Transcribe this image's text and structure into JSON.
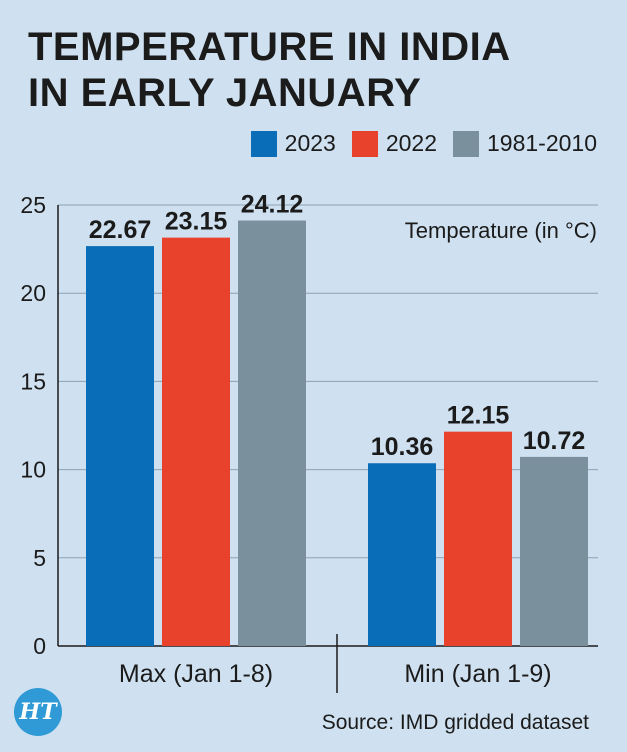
{
  "title_lines": [
    "TEMPERATURE IN INDIA",
    "IN EARLY JANUARY"
  ],
  "legend": [
    {
      "label": "2023",
      "color": "#0a6db7"
    },
    {
      "label": "2022",
      "color": "#e8412c"
    },
    {
      "label": "1981-2010",
      "color": "#7b909d"
    }
  ],
  "source": "Source: IMD gridded dataset",
  "logo_text": "HT",
  "chart_data": {
    "type": "bar",
    "title": "TEMPERATURE IN INDIA IN EARLY JANUARY",
    "ylabel": "Temperature (in °C)",
    "xlabel": "",
    "categories": [
      "Max (Jan 1-8)",
      "Min (Jan 1-9)"
    ],
    "series": [
      {
        "name": "2023",
        "values": [
          22.67,
          10.36
        ],
        "labels": [
          "22.67",
          "10.36"
        ]
      },
      {
        "name": "2022",
        "values": [
          23.15,
          12.15
        ],
        "labels": [
          "23.15",
          "12.15"
        ]
      },
      {
        "name": "1981-2010",
        "values": [
          24.12,
          10.72
        ],
        "labels": [
          "24.12",
          "10.72"
        ]
      }
    ],
    "ylim": [
      0,
      25
    ],
    "yticks": [
      0,
      5,
      10,
      15,
      20,
      25
    ],
    "grid": true
  }
}
